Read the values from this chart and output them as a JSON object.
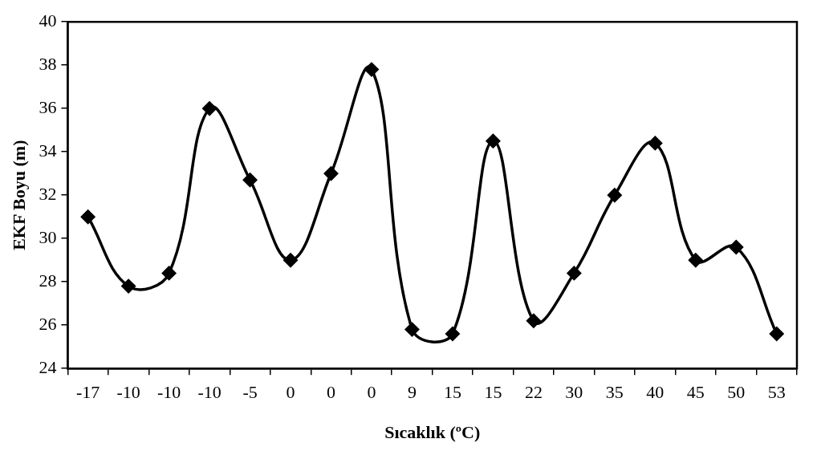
{
  "chart_data": {
    "type": "line",
    "xlabel": "Sıcaklık (ºC)",
    "ylabel": "EKF Boyu (m)",
    "categories": [
      "-17",
      "-10",
      "-10",
      "-10",
      "-5",
      "0",
      "0",
      "0",
      "9",
      "15",
      "15",
      "22",
      "30",
      "35",
      "40",
      "45",
      "50",
      "53"
    ],
    "values": [
      31.0,
      27.8,
      28.4,
      36.0,
      32.7,
      29.0,
      33.0,
      37.8,
      25.8,
      25.6,
      34.5,
      26.2,
      28.4,
      32.0,
      34.4,
      29.0,
      29.6,
      25.6
    ],
    "color": "#000000",
    "ylim": [
      24,
      40
    ],
    "yticks": [
      24,
      26,
      28,
      30,
      32,
      34,
      36,
      38,
      40
    ],
    "marker": "diamond",
    "line_style": "solid"
  }
}
